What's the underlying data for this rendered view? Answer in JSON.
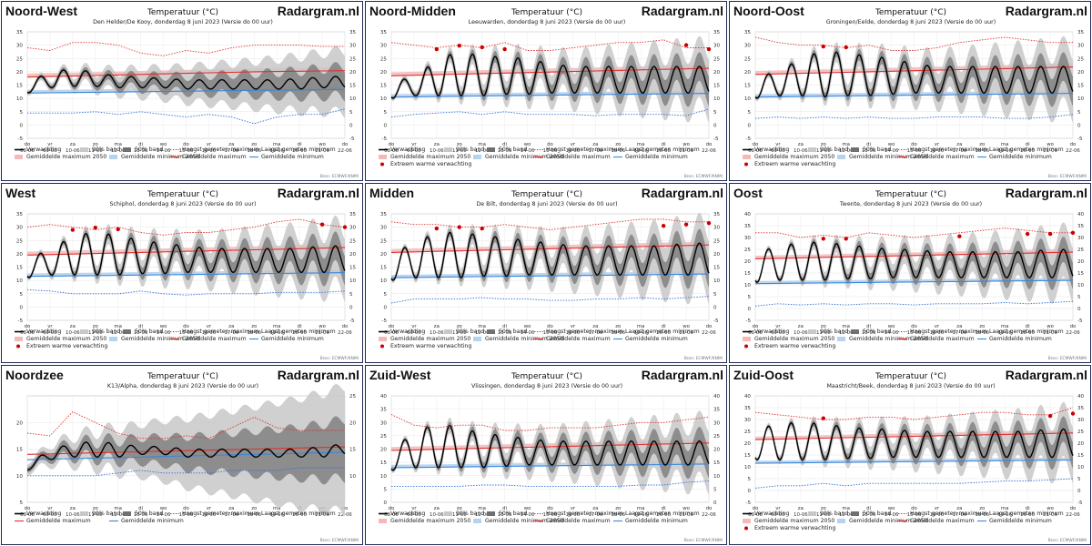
{
  "site": "Radargram.nl",
  "chart_title": "Temperatuur (°C)",
  "source_note": "Bron: ECMWF/KNMI",
  "x_days": [
    "do",
    "vr",
    "za",
    "zo",
    "ma",
    "di",
    "wo",
    "do",
    "vr",
    "za",
    "zo",
    "ma",
    "di",
    "wo",
    "do"
  ],
  "x_dates": [
    "08-06",
    "09-06",
    "10-06",
    "11-06",
    "12-06",
    "13-06",
    "14-06",
    "15-06",
    "16-06",
    "17-06",
    "18-06",
    "19-06",
    "20-06",
    "21-06",
    "22-06"
  ],
  "legend_labels": {
    "forecast": "Verwachting",
    "band90": "90% band",
    "band50": "50% band",
    "rec_max": "Hoogst gemeten maximum",
    "rec_min": "Laagst gemeten minimum",
    "avg_max": "Gemiddelde maximum",
    "avg_min": "Gemiddelde minimum",
    "avg_max_2050": "Gemiddelde maximum 2050",
    "avg_min_2050": "Gemiddelde minimum 2050",
    "extreme": "Extreem warme verwachting"
  },
  "colors": {
    "forecast": "#000000",
    "band90": "#c8c8c8",
    "band50": "#707070",
    "rec_max": "#e03030",
    "rec_min": "#2f6fd6",
    "avg_max": "#e03030",
    "avg_min": "#3a86d9",
    "avg_max_2050": "#f4b8b8",
    "avg_min_2050": "#b5d2ef",
    "extreme": "#cc0000",
    "border": "#1f2a55"
  },
  "chart_data": [
    {
      "type": "line",
      "region": "Noord-West",
      "station": "Den Helder/De Kooy, donderdag 8 juni 2023 (Versie do 00 uur)",
      "ylim": [
        -5,
        35
      ],
      "yticks": [
        -5,
        0,
        5,
        10,
        15,
        20,
        25,
        30,
        35
      ],
      "has2050": true,
      "forecast_max": [
        16.5,
        19.5,
        21.5,
        19.5,
        18.5,
        18,
        17.5,
        17,
        17,
        17,
        17,
        17,
        17.5,
        18,
        18.5
      ],
      "forecast_min": [
        12,
        14,
        14.5,
        14.5,
        14,
        14,
        14,
        13.5,
        13.5,
        13.5,
        13.5,
        13.5,
        13.5,
        14,
        14
      ],
      "record_max": [
        29,
        28,
        31,
        31,
        30,
        27,
        26,
        28,
        27,
        29,
        30,
        30,
        30,
        29.5,
        29.5
      ],
      "record_min": [
        4.5,
        4.5,
        4.5,
        5,
        4,
        5,
        4,
        3,
        4,
        3,
        0.5,
        3,
        4,
        4,
        6
      ],
      "avg_max": [
        18,
        18.2,
        18.4,
        18.6,
        18.8,
        19,
        19.2,
        19.4,
        19.6,
        19.8,
        20,
        20.1,
        20.2,
        20.3,
        20.4
      ],
      "avg_min": [
        12,
        12.1,
        12.2,
        12.3,
        12.4,
        12.5,
        12.6,
        12.7,
        12.8,
        12.9,
        13,
        13.1,
        13.2,
        13.3,
        13.4
      ],
      "extremes": []
    },
    {
      "type": "line",
      "region": "Noord-Midden",
      "station": "Leeuwarden, donderdag 8 juni 2023 (Versie do 00 uur)",
      "ylim": [
        -5,
        35
      ],
      "yticks": [
        -5,
        0,
        5,
        10,
        15,
        20,
        25,
        30,
        35
      ],
      "has2050": true,
      "forecast_max": [
        17.5,
        17,
        25,
        27.5,
        26,
        25.5,
        25,
        23,
        22,
        22,
        22,
        22,
        22,
        22,
        22
      ],
      "forecast_min": [
        10,
        11,
        11,
        11,
        11,
        11.5,
        11.5,
        12,
        12,
        12,
        12,
        12,
        12,
        12,
        12
      ],
      "record_max": [
        31,
        30,
        29,
        30,
        29,
        31,
        28,
        28,
        29,
        30,
        31,
        31,
        32,
        29,
        29
      ],
      "record_min": [
        3,
        4,
        4.5,
        5,
        4,
        5,
        4,
        4,
        4,
        3.5,
        4,
        4,
        4,
        3.5,
        6
      ],
      "avg_max": [
        18.5,
        18.7,
        18.9,
        19.1,
        19.3,
        19.5,
        19.7,
        19.9,
        20.1,
        20.3,
        20.5,
        20.7,
        20.9,
        21.1,
        21.3
      ],
      "avg_min": [
        10.5,
        10.6,
        10.7,
        10.8,
        10.9,
        11,
        11.1,
        11.2,
        11.3,
        11.4,
        11.5,
        11.6,
        11.7,
        11.8,
        11.9
      ],
      "extremes": [
        [
          2,
          28.5
        ],
        [
          3,
          29.8
        ],
        [
          4,
          29.2
        ],
        [
          5,
          28.5
        ],
        [
          13,
          30
        ],
        [
          14,
          28.5
        ]
      ]
    },
    {
      "type": "line",
      "region": "Noord-Oost",
      "station": "Groningen/Eelde, donderdag 8 juni 2023 (Versie do 00 uur)",
      "ylim": [
        -5,
        35
      ],
      "yticks": [
        -5,
        0,
        5,
        10,
        15,
        20,
        25,
        30,
        35
      ],
      "has2050": true,
      "forecast_max": [
        18,
        20,
        25,
        28,
        27,
        26,
        25,
        23,
        22,
        22,
        22,
        22,
        22,
        22,
        22
      ],
      "forecast_min": [
        10,
        11,
        11,
        10.5,
        11,
        11,
        11.5,
        12,
        12,
        12,
        12,
        12,
        12,
        12,
        12
      ],
      "record_max": [
        33,
        31,
        30,
        30,
        29,
        30,
        28,
        28,
        29,
        31,
        32,
        33,
        32,
        31,
        31
      ],
      "record_min": [
        2.5,
        3,
        2.5,
        3,
        2.5,
        3,
        2.5,
        2.5,
        3,
        3,
        3,
        2.5,
        2.5,
        3,
        4
      ],
      "avg_max": [
        19,
        19.2,
        19.4,
        19.6,
        19.8,
        20,
        20.2,
        20.4,
        20.6,
        20.8,
        21,
        21.2,
        21.4,
        21.6,
        21.8
      ],
      "avg_min": [
        10.5,
        10.6,
        10.7,
        10.8,
        10.9,
        11,
        11.1,
        11.2,
        11.3,
        11.4,
        11.5,
        11.6,
        11.7,
        11.8,
        11.9
      ],
      "extremes": [
        [
          3,
          29.5
        ],
        [
          4,
          29.2
        ]
      ]
    },
    {
      "type": "line",
      "region": "West",
      "station": "Schiphol, donderdag 8 juni 2023 (Versie do 00 uur)",
      "ylim": [
        -5,
        35
      ],
      "yticks": [
        -5,
        0,
        5,
        10,
        15,
        20,
        25,
        30,
        35
      ],
      "has2050": true,
      "forecast_max": [
        19,
        21,
        27,
        28,
        27,
        25,
        24,
        23,
        22,
        22,
        22,
        22,
        22,
        23,
        23
      ],
      "forecast_min": [
        11,
        12,
        12,
        12,
        12,
        12.5,
        12.5,
        13,
        13,
        13,
        13,
        13,
        13,
        13,
        13
      ],
      "record_max": [
        30,
        31,
        30,
        29,
        30,
        28,
        27,
        28,
        28,
        29,
        30,
        32,
        33,
        31,
        30
      ],
      "record_min": [
        6.5,
        6,
        5,
        5,
        5,
        6,
        5,
        4.5,
        5,
        5,
        5,
        5.5,
        5.5,
        5.5,
        6
      ],
      "avg_max": [
        19.5,
        19.7,
        19.9,
        20.1,
        20.3,
        20.5,
        20.7,
        20.9,
        21.1,
        21.3,
        21.5,
        21.7,
        21.9,
        22.1,
        22.3
      ],
      "avg_min": [
        11.5,
        11.6,
        11.7,
        11.8,
        11.9,
        12,
        12.1,
        12.2,
        12.3,
        12.4,
        12.5,
        12.6,
        12.7,
        12.8,
        12.9
      ],
      "extremes": [
        [
          2,
          29
        ],
        [
          3,
          29.8
        ],
        [
          4,
          29.2
        ],
        [
          13,
          31
        ],
        [
          14,
          30
        ]
      ]
    },
    {
      "type": "line",
      "region": "Midden",
      "station": "De Bilt, donderdag 8 juni 2023 (Versie do 00 uur)",
      "ylim": [
        -5,
        35
      ],
      "yticks": [
        -5,
        0,
        5,
        10,
        15,
        20,
        25,
        30,
        35
      ],
      "has2050": true,
      "forecast_max": [
        20,
        24,
        28,
        28,
        27,
        26,
        25,
        24,
        23,
        23,
        23,
        23,
        23,
        24,
        24
      ],
      "forecast_min": [
        10,
        11,
        11,
        11,
        11.5,
        11.5,
        12,
        12,
        12,
        12,
        12,
        12,
        12,
        12,
        12
      ],
      "record_max": [
        32,
        31,
        31,
        30,
        30,
        31,
        30,
        29,
        30,
        31,
        32,
        33,
        33,
        32,
        32
      ],
      "record_min": [
        1.5,
        3,
        3,
        3,
        3.5,
        3,
        3,
        2.5,
        2.5,
        3,
        3,
        3.5,
        3,
        3.5,
        4
      ],
      "avg_max": [
        20.5,
        20.7,
        20.9,
        21.1,
        21.3,
        21.5,
        21.7,
        21.9,
        22.1,
        22.3,
        22.5,
        22.7,
        22.9,
        23.1,
        23.3
      ],
      "avg_min": [
        11,
        11.1,
        11.2,
        11.3,
        11.4,
        11.5,
        11.6,
        11.7,
        11.8,
        11.9,
        12,
        12.1,
        12.2,
        12.3,
        12.4
      ],
      "extremes": [
        [
          2,
          29.5
        ],
        [
          3,
          30
        ],
        [
          4,
          29.5
        ],
        [
          12,
          30.5
        ],
        [
          13,
          31
        ],
        [
          14,
          31.5
        ]
      ]
    },
    {
      "type": "line",
      "region": "Oost",
      "station": "Twente, donderdag 8 juni 2023 (Versie do 00 uur)",
      "ylim": [
        -5,
        40
      ],
      "yticks": [
        -5,
        0,
        5,
        10,
        15,
        20,
        25,
        30,
        35,
        40
      ],
      "has2050": true,
      "forecast_max": [
        24,
        26,
        28,
        28,
        27,
        26,
        25,
        25,
        24,
        24,
        24,
        24,
        24,
        25,
        25
      ],
      "forecast_min": [
        11,
        12,
        12,
        12,
        12.5,
        12.5,
        13,
        13,
        13,
        13,
        13,
        13,
        13,
        13,
        13
      ],
      "record_max": [
        32,
        32,
        30,
        31,
        30,
        32,
        31,
        30,
        31,
        32,
        33,
        34,
        33,
        32,
        32
      ],
      "record_min": [
        1,
        2,
        1.5,
        2,
        1.5,
        2,
        2,
        1.5,
        2,
        2,
        2,
        2.5,
        2,
        2.5,
        3
      ],
      "avg_max": [
        21,
        21.2,
        21.4,
        21.6,
        21.8,
        22,
        22.2,
        22.4,
        22.6,
        22.8,
        23,
        23.2,
        23.4,
        23.6,
        23.8
      ],
      "avg_min": [
        10.5,
        10.6,
        10.7,
        10.8,
        10.9,
        11,
        11.1,
        11.2,
        11.3,
        11.4,
        11.5,
        11.6,
        11.7,
        11.8,
        11.9
      ],
      "extremes": [
        [
          3,
          29.5
        ],
        [
          4,
          29.5
        ],
        [
          9,
          30.5
        ],
        [
          12,
          31.5
        ],
        [
          13,
          31.5
        ],
        [
          14,
          32
        ]
      ]
    },
    {
      "type": "line",
      "region": "Noordzee",
      "station": "K13/Alpha, donderdag 8 juni 2023 (Versie do 00 uur)",
      "ylim": [
        5,
        25
      ],
      "yticks": [
        5,
        10,
        15,
        20
      ],
      "y2ticks": [
        10,
        15,
        20,
        25
      ],
      "has2050": false,
      "forecast_max": [
        12,
        15,
        16,
        16.5,
        16,
        15.5,
        15.5,
        15,
        15,
        15,
        15,
        15,
        15,
        15.5,
        16
      ],
      "forecast_min": [
        11,
        13,
        13.5,
        13.5,
        13.5,
        14,
        14,
        13.5,
        13.5,
        13.5,
        13.5,
        13.5,
        13.5,
        13.5,
        14
      ],
      "record_max": [
        18,
        17.5,
        22,
        20,
        18,
        17,
        17,
        17.5,
        17,
        19,
        21,
        19,
        18.5,
        18.5,
        18.5
      ],
      "record_min": [
        10,
        10,
        10,
        10,
        10.5,
        11,
        10.5,
        10.5,
        10.5,
        11,
        11,
        11,
        11.5,
        11.5,
        11.5
      ],
      "avg_max": [
        14,
        14.1,
        14.2,
        14.3,
        14.4,
        14.5,
        14.6,
        14.7,
        14.8,
        14.9,
        15,
        15.1,
        15.2,
        15.3,
        15.4
      ],
      "avg_min": [
        13,
        13.1,
        13.2,
        13.3,
        13.4,
        13.5,
        13.6,
        13.7,
        13.8,
        13.9,
        14,
        14.1,
        14.2,
        14.3,
        14.4
      ],
      "extremes": []
    },
    {
      "type": "line",
      "region": "Zuid-West",
      "station": "Vlissingen, donderdag 8 juni 2023 (Versie do 00 uur)",
      "ylim": [
        0,
        40
      ],
      "yticks": [
        0,
        5,
        10,
        15,
        20,
        25,
        30,
        35,
        40
      ],
      "has2050": true,
      "forecast_max": [
        20,
        26,
        30,
        28,
        26,
        25,
        24,
        23,
        23,
        23,
        23,
        23,
        23,
        23,
        23
      ],
      "forecast_min": [
        12,
        13,
        13,
        13,
        13,
        13.5,
        14,
        14,
        14,
        14,
        14,
        14,
        14,
        14,
        14
      ],
      "record_max": [
        33,
        29,
        28,
        29,
        29,
        27,
        27,
        28,
        28,
        28,
        29,
        30,
        30,
        31,
        32
      ],
      "record_min": [
        6,
        6,
        6,
        6,
        6.5,
        6.5,
        6,
        6,
        6,
        6,
        6,
        6.5,
        6.5,
        7.5,
        8
      ],
      "avg_max": [
        19.5,
        19.7,
        19.9,
        20.1,
        20.3,
        20.5,
        20.7,
        20.9,
        21.1,
        21.3,
        21.5,
        21.7,
        21.9,
        22.1,
        22.3
      ],
      "avg_min": [
        13,
        13.1,
        13.2,
        13.3,
        13.4,
        13.5,
        13.6,
        13.7,
        13.8,
        13.9,
        14,
        14.1,
        14.2,
        14.3,
        14.4
      ],
      "extremes": []
    },
    {
      "type": "line",
      "region": "Zuid-Oost",
      "station": "Maastricht/Beek, donderdag 8 juni 2023 (Versie do 00 uur)",
      "ylim": [
        -5,
        40
      ],
      "yticks": [
        -5,
        0,
        5,
        10,
        15,
        20,
        25,
        30,
        35,
        40
      ],
      "has2050": true,
      "forecast_max": [
        26,
        28,
        29,
        28,
        27,
        26,
        26,
        25,
        25,
        25,
        25,
        25,
        25,
        26,
        26
      ],
      "forecast_min": [
        13,
        13,
        13,
        13,
        13.5,
        13.5,
        14,
        14,
        14,
        14,
        14,
        14,
        14,
        14,
        14
      ],
      "record_max": [
        33,
        32,
        31,
        30,
        30,
        31,
        31,
        30,
        31,
        32,
        33,
        33,
        32,
        32,
        35
      ],
      "record_min": [
        1,
        2,
        2,
        3,
        2,
        3,
        3,
        3,
        3,
        3,
        3.5,
        4,
        4,
        4.5,
        5
      ],
      "avg_max": [
        21.5,
        21.7,
        21.9,
        22.1,
        22.3,
        22.5,
        22.7,
        22.9,
        23.1,
        23.3,
        23.5,
        23.7,
        23.9,
        24.1,
        24.3
      ],
      "avg_min": [
        11.5,
        11.6,
        11.7,
        11.8,
        11.9,
        12,
        12.1,
        12.2,
        12.3,
        12.4,
        12.5,
        12.6,
        12.7,
        12.8,
        12.9
      ],
      "extremes": [
        [
          3,
          30.5
        ],
        [
          13,
          31.5
        ],
        [
          14,
          32.5
        ]
      ]
    }
  ]
}
